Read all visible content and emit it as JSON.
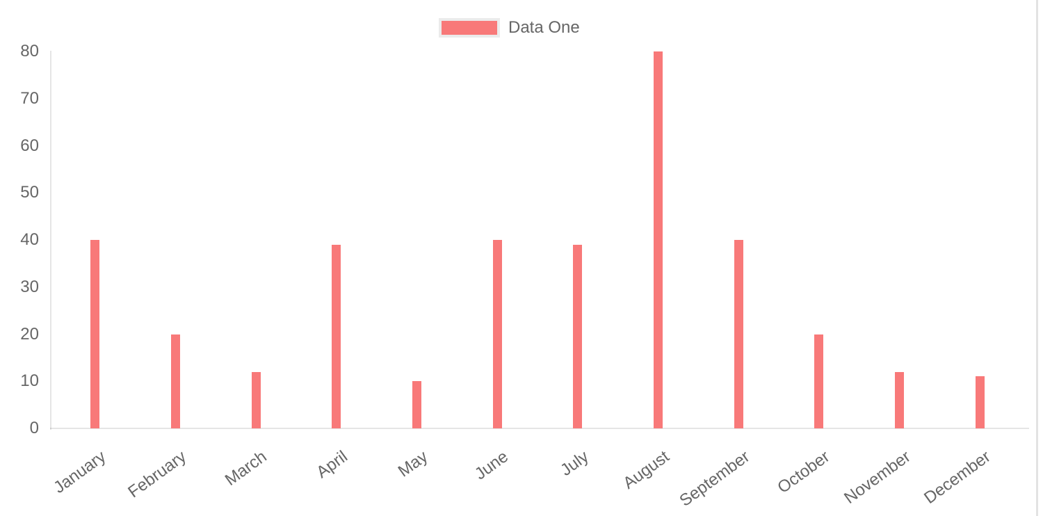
{
  "page": {
    "background": "#ffffff"
  },
  "chart_data": {
    "type": "bar",
    "title": "",
    "xlabel": "",
    "ylabel": "",
    "categories": [
      "January",
      "February",
      "March",
      "April",
      "May",
      "June",
      "July",
      "August",
      "September",
      "October",
      "November",
      "December"
    ],
    "series": [
      {
        "name": "Data One",
        "color": "#f87979",
        "values": [
          40,
          20,
          12,
          39,
          10,
          40,
          39,
          80,
          40,
          20,
          12,
          11
        ]
      }
    ],
    "ylim": [
      0,
      80
    ],
    "yticks": [
      0,
      10,
      20,
      30,
      40,
      50,
      60,
      70,
      80
    ],
    "grid": false,
    "legend_position": "top-center",
    "x_tick_rotation_deg": -36,
    "colors": {
      "bar": "#f87979",
      "axis_line": "rgba(0,0,0,0.1)",
      "tick_text": "#666666",
      "legend_text": "#666666",
      "legend_swatch_border": "#ebebeb",
      "scrollbar_track": "#e3e3e3"
    }
  }
}
